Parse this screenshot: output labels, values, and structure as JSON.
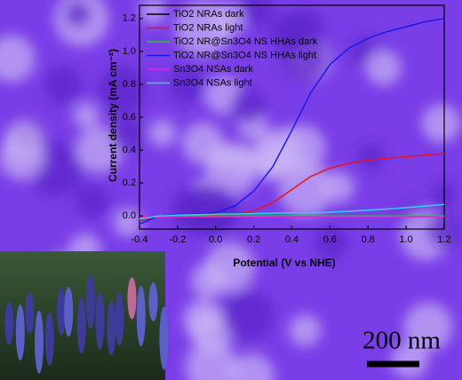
{
  "chart_data": {
    "type": "line",
    "xlabel": "Potential (V vs NHE)",
    "ylabel": "Current density (mA cm⁻²)",
    "x": [
      -0.4,
      -0.3,
      -0.2,
      -0.1,
      0.0,
      0.1,
      0.2,
      0.3,
      0.4,
      0.5,
      0.6,
      0.7,
      0.8,
      0.9,
      1.0,
      1.1,
      1.2
    ],
    "series": [
      {
        "name": "TiO2 NRAs dark",
        "color": "#000000",
        "values": [
          -0.03,
          -0.002,
          0.0,
          0.0,
          0.0,
          0.0,
          0.0,
          0.0,
          0.0,
          0.0,
          0.0,
          0.0,
          0.0,
          0.0,
          0.0,
          0.0,
          0.0
        ]
      },
      {
        "name": "TiO2 NRAs light",
        "color": "#e8141c",
        "values": [
          -0.03,
          0.0,
          0.005,
          0.005,
          0.008,
          0.012,
          0.03,
          0.08,
          0.16,
          0.24,
          0.29,
          0.32,
          0.34,
          0.35,
          0.36,
          0.37,
          0.38
        ]
      },
      {
        "name": "TiO2 NR@Sn3O4 NS HHAs dark",
        "color": "#22cc22",
        "values": [
          -0.02,
          0.0,
          0.0,
          0.0,
          0.0,
          0.0,
          0.0,
          0.0,
          0.0,
          0.0,
          0.0,
          0.0,
          0.0,
          0.0,
          0.0,
          0.0,
          0.0
        ]
      },
      {
        "name": "TiO2 NR@Sn3O4 NS HHAs light",
        "color": "#1a1ae6",
        "values": [
          -0.05,
          0.0,
          0.01,
          0.01,
          0.02,
          0.06,
          0.15,
          0.3,
          0.52,
          0.75,
          0.92,
          1.02,
          1.08,
          1.12,
          1.15,
          1.18,
          1.2
        ]
      },
      {
        "name": "Sn3O4 NSAs dark",
        "color": "#e020e0",
        "values": [
          -0.01,
          -0.005,
          -0.005,
          -0.005,
          -0.005,
          -0.005,
          -0.005,
          -0.005,
          -0.005,
          -0.005,
          -0.005,
          -0.005,
          -0.005,
          -0.005,
          -0.005,
          -0.005,
          -0.005
        ]
      },
      {
        "name": "Sn3O4 NSAs light",
        "color": "#30d0ee",
        "values": [
          -0.02,
          0.0,
          0.005,
          0.008,
          0.01,
          0.012,
          0.014,
          0.016,
          0.018,
          0.02,
          0.022,
          0.028,
          0.035,
          0.042,
          0.05,
          0.06,
          0.07
        ]
      }
    ],
    "xlim": [
      -0.4,
      1.2
    ],
    "ylim": [
      -0.08,
      1.28
    ],
    "xticks": [
      -0.4,
      -0.2,
      {
        "value": 0,
        "label": "0.0"
      },
      0.2,
      0.4,
      0.6,
      0.8,
      {
        "value": 1,
        "label": "1.0"
      },
      1.2
    ],
    "yticks": [
      {
        "value": 0,
        "label": "0.0"
      },
      0.2,
      0.4,
      0.6,
      0.8,
      {
        "value": 1,
        "label": "1.0"
      },
      1.2
    ],
    "legend": "upper left"
  },
  "scale_bar": "200 nm"
}
